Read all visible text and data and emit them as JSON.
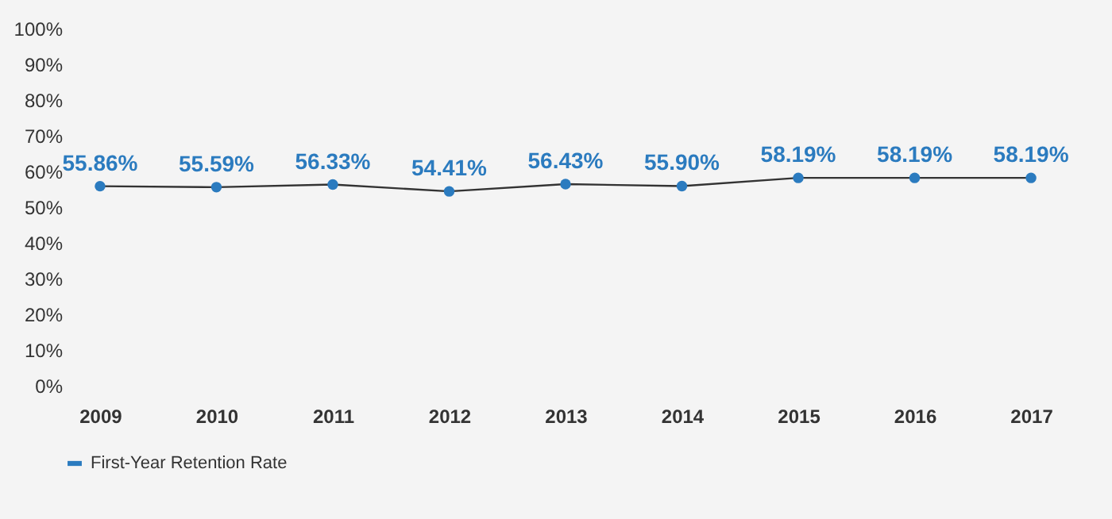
{
  "chart_data": {
    "type": "line",
    "categories": [
      "2009",
      "2010",
      "2011",
      "2012",
      "2013",
      "2014",
      "2015",
      "2016",
      "2017"
    ],
    "series": [
      {
        "name": "First-Year Retention Rate",
        "color": "#2b7bbf",
        "values": [
          55.86,
          55.59,
          56.33,
          54.41,
          56.43,
          55.9,
          58.19,
          58.19,
          58.19
        ]
      }
    ],
    "ylim": [
      0,
      100
    ],
    "yticks": [
      {
        "value": 0,
        "label": "0%"
      },
      {
        "value": 10,
        "label": "10%"
      },
      {
        "value": 20,
        "label": "20%"
      },
      {
        "value": 30,
        "label": "30%"
      },
      {
        "value": 40,
        "label": "40%"
      },
      {
        "value": 50,
        "label": "50%"
      },
      {
        "value": 60,
        "label": "60%"
      },
      {
        "value": 70,
        "label": "70%"
      },
      {
        "value": 80,
        "label": "80%"
      },
      {
        "value": 90,
        "label": "90%"
      },
      {
        "value": 100,
        "label": "100%"
      }
    ],
    "value_labels": [
      [
        "55.86%",
        "55.59%",
        "56.33%",
        "54.41%",
        "56.43%",
        "55.90%",
        "58.19%",
        "58.19%",
        "58.19%"
      ]
    ],
    "marker": "circle",
    "grid": false,
    "legend": "bottom"
  }
}
